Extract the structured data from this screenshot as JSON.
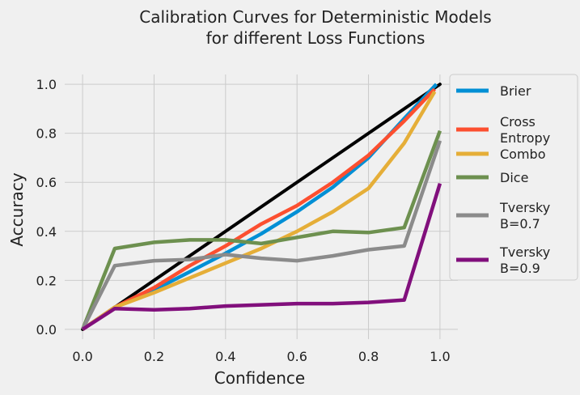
{
  "chart_data": {
    "type": "line",
    "title": [
      "Calibration Curves for Deterministic Models",
      "for different Loss Functions"
    ],
    "xlabel": "Confidence",
    "ylabel": "Accuracy",
    "xlim": [
      -0.05,
      1.05
    ],
    "ylim": [
      -0.04,
      1.04
    ],
    "xticks": [
      0.0,
      0.2,
      0.4,
      0.6,
      0.8,
      1.0
    ],
    "xtick_labels": [
      "0.0",
      "0.2",
      "0.4",
      "0.6",
      "0.8",
      "1.0"
    ],
    "yticks": [
      0.0,
      0.2,
      0.4,
      0.6,
      0.8,
      1.0
    ],
    "ytick_labels": [
      "0.0",
      "0.2",
      "0.4",
      "0.6",
      "0.8",
      "1.0"
    ],
    "grid": true,
    "legend_position": "outside-right",
    "reference_line": {
      "x": [
        0,
        1
      ],
      "y": [
        0,
        1
      ],
      "color": "#000000"
    },
    "series": [
      {
        "label_lines": [
          "Brier"
        ],
        "color": "#008fd5",
        "x": [
          0.0,
          0.09,
          0.2,
          0.3,
          0.4,
          0.5,
          0.6,
          0.7,
          0.8,
          0.9,
          0.99
        ],
        "y": [
          0.0,
          0.09,
          0.16,
          0.235,
          0.31,
          0.39,
          0.48,
          0.58,
          0.7,
          0.86,
          1.0
        ]
      },
      {
        "label_lines": [
          "Cross",
          "Entropy"
        ],
        "color": "#fc4f30",
        "x": [
          0.0,
          0.09,
          0.2,
          0.3,
          0.4,
          0.5,
          0.6,
          0.7,
          0.8,
          0.9,
          0.985
        ],
        "y": [
          0.0,
          0.09,
          0.17,
          0.26,
          0.34,
          0.43,
          0.505,
          0.6,
          0.71,
          0.85,
          0.98
        ]
      },
      {
        "label_lines": [
          "Combo"
        ],
        "color": "#e5ae38",
        "x": [
          0.0,
          0.09,
          0.2,
          0.3,
          0.4,
          0.5,
          0.6,
          0.7,
          0.8,
          0.9,
          0.985
        ],
        "y": [
          0.0,
          0.09,
          0.15,
          0.21,
          0.27,
          0.33,
          0.4,
          0.48,
          0.575,
          0.76,
          0.97
        ]
      },
      {
        "label_lines": [
          "Dice"
        ],
        "color": "#6d904f",
        "x": [
          0.0,
          0.09,
          0.2,
          0.3,
          0.4,
          0.5,
          0.6,
          0.7,
          0.8,
          0.9,
          1.0
        ],
        "y": [
          0.0,
          0.33,
          0.355,
          0.365,
          0.365,
          0.35,
          0.375,
          0.4,
          0.395,
          0.415,
          0.81
        ]
      },
      {
        "label_lines": [
          "Tversky",
          "B=0.7"
        ],
        "color": "#8b8b8b",
        "x": [
          0.0,
          0.09,
          0.2,
          0.3,
          0.4,
          0.5,
          0.6,
          0.7,
          0.8,
          0.9,
          1.0
        ],
        "y": [
          0.0,
          0.26,
          0.28,
          0.285,
          0.305,
          0.29,
          0.28,
          0.3,
          0.325,
          0.34,
          0.77
        ]
      },
      {
        "label_lines": [
          "Tversky",
          "B=0.9"
        ],
        "color": "#810f7c",
        "x": [
          0.0,
          0.09,
          0.2,
          0.3,
          0.4,
          0.5,
          0.6,
          0.7,
          0.8,
          0.9,
          1.0
        ],
        "y": [
          0.0,
          0.085,
          0.08,
          0.085,
          0.095,
          0.1,
          0.105,
          0.105,
          0.11,
          0.12,
          0.595
        ]
      }
    ]
  }
}
